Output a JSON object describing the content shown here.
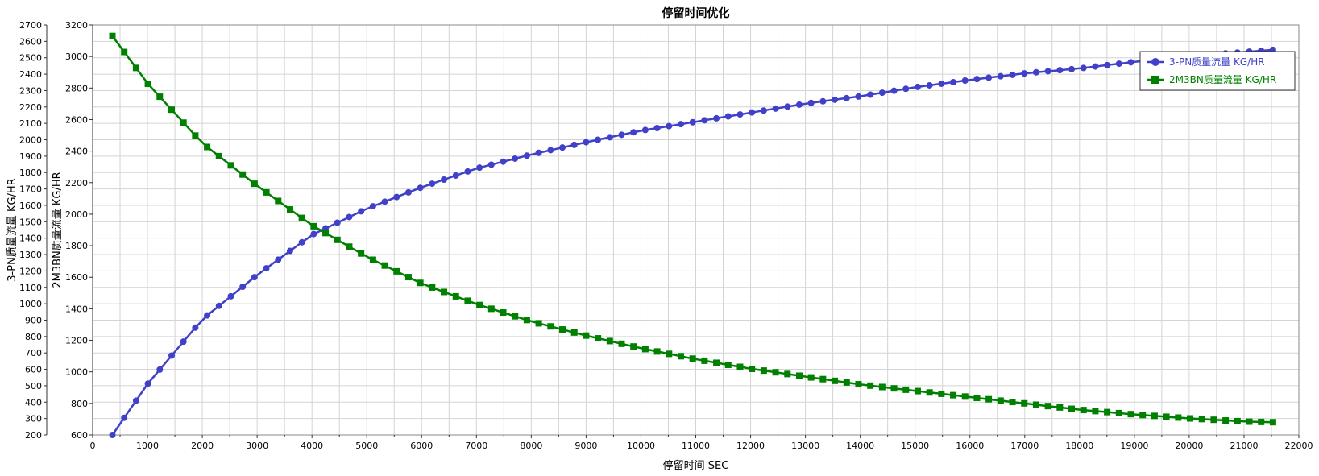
{
  "chart_data": {
    "type": "line",
    "title": "停留时间优化",
    "xlabel": "停留时间 SEC",
    "xlim": [
      0,
      22000
    ],
    "x_ticks": [
      0,
      1000,
      2000,
      3000,
      4000,
      5000,
      6000,
      7000,
      8000,
      9000,
      10000,
      11000,
      12000,
      13000,
      14000,
      15000,
      16000,
      17000,
      18000,
      19000,
      20000,
      21000,
      22000
    ],
    "y_axes": [
      {
        "label": "3-PN质量流量 KG/HR",
        "range": [
          200,
          2700
        ],
        "ticks": [
          200,
          300,
          400,
          500,
          600,
          700,
          800,
          900,
          1000,
          1100,
          1200,
          1300,
          1400,
          1500,
          1600,
          1700,
          1800,
          1900,
          2000,
          2100,
          2200,
          2300,
          2400,
          2500,
          2600,
          2700
        ]
      },
      {
        "label": "2M3BN质量流量 KG/HR",
        "range": [
          600,
          3200
        ],
        "ticks": [
          600,
          800,
          1000,
          1200,
          1400,
          1600,
          1800,
          2000,
          2200,
          2400,
          2600,
          2800,
          3000,
          3200
        ]
      }
    ],
    "x_start": 360,
    "x_step": 216,
    "x_count": 99,
    "series": [
      {
        "name": "3-PN质量流量 KG/HR",
        "axis": 0,
        "marker": "circle",
        "color": "#4040c8",
        "anchors": [
          [
            360,
            200
          ],
          [
            1000,
            510
          ],
          [
            2000,
            905
          ],
          [
            3000,
            1175
          ],
          [
            4000,
            1420
          ],
          [
            5000,
            1580
          ],
          [
            6000,
            1710
          ],
          [
            7000,
            1825
          ],
          [
            8000,
            1910
          ],
          [
            9000,
            1985
          ],
          [
            10000,
            2055
          ],
          [
            11000,
            2110
          ],
          [
            12000,
            2165
          ],
          [
            13000,
            2220
          ],
          [
            14000,
            2265
          ],
          [
            15000,
            2320
          ],
          [
            16000,
            2365
          ],
          [
            17000,
            2405
          ],
          [
            18000,
            2435
          ],
          [
            19000,
            2475
          ],
          [
            20000,
            2510
          ],
          [
            21000,
            2535
          ],
          [
            21600,
            2550
          ]
        ]
      },
      {
        "name": "2M3BN质量流量 KG/HR",
        "axis": 1,
        "marker": "square",
        "color": "#008000",
        "anchors": [
          [
            360,
            3130
          ],
          [
            1000,
            2830
          ],
          [
            2000,
            2450
          ],
          [
            3000,
            2180
          ],
          [
            4000,
            1930
          ],
          [
            5000,
            1730
          ],
          [
            6000,
            1560
          ],
          [
            7000,
            1430
          ],
          [
            8000,
            1320
          ],
          [
            9000,
            1230
          ],
          [
            10000,
            1150
          ],
          [
            11000,
            1080
          ],
          [
            12000,
            1020
          ],
          [
            13000,
            970
          ],
          [
            14000,
            920
          ],
          [
            15000,
            880
          ],
          [
            16000,
            840
          ],
          [
            17000,
            800
          ],
          [
            18000,
            760
          ],
          [
            19000,
            730
          ],
          [
            20000,
            705
          ],
          [
            21000,
            685
          ],
          [
            21600,
            680
          ]
        ]
      }
    ],
    "grid": true,
    "legend_position": "top-right"
  }
}
